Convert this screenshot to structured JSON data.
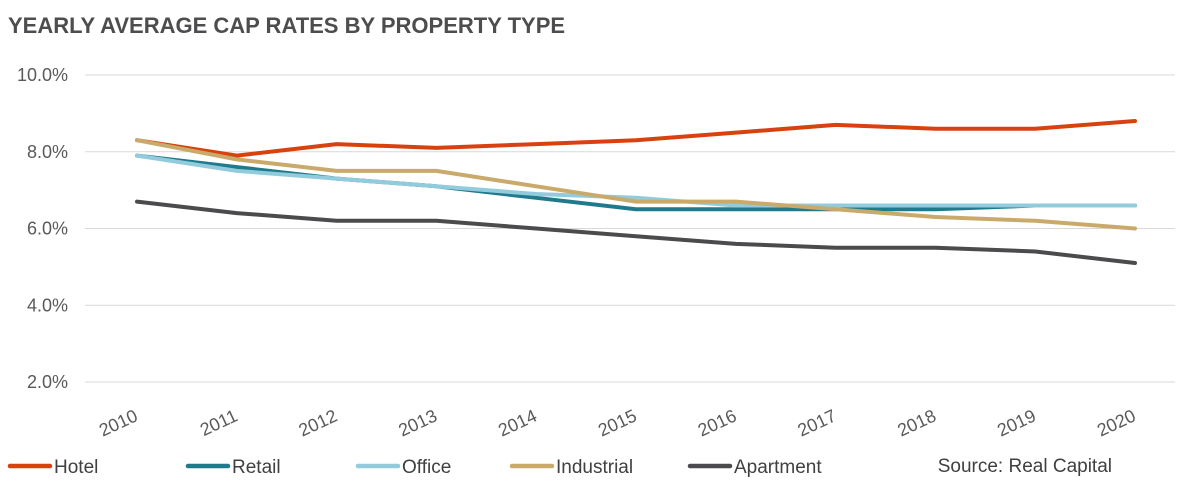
{
  "chart_data": {
    "type": "line",
    "title": "YEARLY AVERAGE CAP RATES BY PROPERTY TYPE",
    "source": "Source: Real Capital",
    "x": [
      "2010",
      "2011",
      "2012",
      "2013",
      "2014",
      "2015",
      "2016",
      "2017",
      "2018",
      "2019",
      "2020"
    ],
    "ylim": [
      2.0,
      10.0
    ],
    "yticks": [
      2.0,
      4.0,
      6.0,
      8.0,
      10.0
    ],
    "ytick_labels": [
      "2.0%",
      "4.0%",
      "6.0%",
      "8.0%",
      "10.0%"
    ],
    "grid": true,
    "legend_position": "bottom-left",
    "series": [
      {
        "name": "Hotel",
        "color": "#d7420e",
        "values": [
          8.3,
          7.9,
          8.2,
          8.1,
          8.2,
          8.3,
          8.5,
          8.7,
          8.6,
          8.6,
          8.8
        ]
      },
      {
        "name": "Retail",
        "color": "#1f7a8c",
        "values": [
          7.9,
          7.6,
          7.3,
          7.1,
          6.8,
          6.5,
          6.5,
          6.5,
          6.5,
          6.6,
          6.6
        ]
      },
      {
        "name": "Office",
        "color": "#92ccdc",
        "values": [
          7.9,
          7.5,
          7.3,
          7.1,
          6.9,
          6.8,
          6.6,
          6.6,
          6.6,
          6.6,
          6.6
        ]
      },
      {
        "name": "Industrial",
        "color": "#c9aa6b",
        "values": [
          8.3,
          7.8,
          7.5,
          7.5,
          7.1,
          6.7,
          6.7,
          6.5,
          6.3,
          6.2,
          6.0
        ]
      },
      {
        "name": "Apartment",
        "color": "#4b4b4d",
        "values": [
          6.7,
          6.4,
          6.2,
          6.2,
          6.0,
          5.8,
          5.6,
          5.5,
          5.5,
          5.4,
          5.1
        ]
      }
    ]
  }
}
